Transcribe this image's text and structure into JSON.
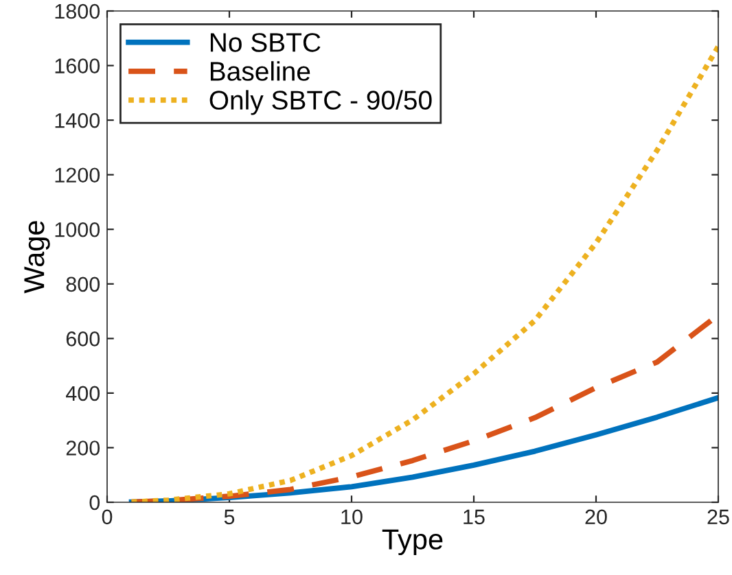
{
  "chart_data": {
    "type": "line",
    "xlabel": "Type",
    "ylabel": "Wage",
    "x": [
      1,
      2.5,
      5,
      7.5,
      10,
      12.5,
      15,
      17.5,
      20,
      22.5,
      25
    ],
    "series": [
      {
        "name": "No SBTC",
        "color": "#0072bd",
        "line_style": "solid",
        "values": [
          1,
          5,
          17,
          34,
          57,
          92,
          136,
          187,
          247,
          312,
          383
        ]
      },
      {
        "name": "Baseline",
        "color": "#d95319",
        "line_style": "dashed",
        "values": [
          1,
          6,
          22,
          47,
          93,
          153,
          225,
          310,
          420,
          514,
          686
        ]
      },
      {
        "name": "Only SBTC - 90/50",
        "color": "#edb120",
        "line_style": "dotted",
        "values": [
          1,
          8,
          31,
          80,
          171,
          302,
          471,
          666,
          950,
          1290,
          1670
        ]
      }
    ],
    "xlim": [
      0,
      25
    ],
    "xticks": [
      0,
      5,
      10,
      15,
      20,
      25
    ],
    "ylim": [
      0,
      1800
    ],
    "yticks": [
      0,
      200,
      400,
      600,
      800,
      1000,
      1200,
      1400,
      1600,
      1800
    ],
    "grid": false,
    "legend": "top left",
    "marker": "none"
  }
}
